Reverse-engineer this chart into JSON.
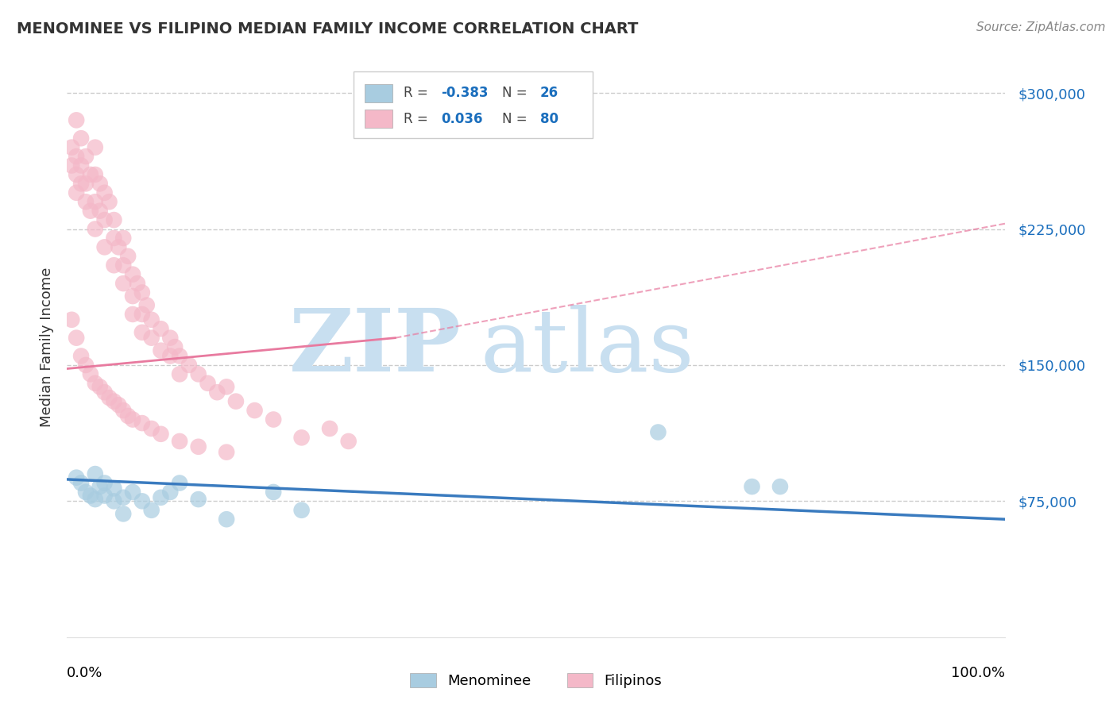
{
  "title": "MENOMINEE VS FILIPINO MEDIAN FAMILY INCOME CORRELATION CHART",
  "source": "Source: ZipAtlas.com",
  "ylabel": "Median Family Income",
  "legend_bottom": [
    "Menominee",
    "Filipinos"
  ],
  "menominee_R": -0.383,
  "menominee_N": 26,
  "filipinos_R": 0.036,
  "filipinos_N": 80,
  "y_ticks": [
    0,
    75000,
    150000,
    225000,
    300000
  ],
  "y_tick_labels": [
    "",
    "$75,000",
    "$150,000",
    "$225,000",
    "$300,000"
  ],
  "menominee_color": "#a8cce0",
  "filipinos_color": "#f4b8c8",
  "menominee_line_color": "#3a7bbf",
  "filipinos_line_color": "#e87a9f",
  "background_color": "#ffffff",
  "watermark_zip_color": "#c8dff0",
  "watermark_atlas_color": "#c8dff0",
  "menominee_x": [
    0.01,
    0.015,
    0.02,
    0.025,
    0.03,
    0.03,
    0.035,
    0.04,
    0.04,
    0.05,
    0.05,
    0.06,
    0.06,
    0.07,
    0.08,
    0.09,
    0.1,
    0.11,
    0.12,
    0.14,
    0.17,
    0.22,
    0.25,
    0.63,
    0.73,
    0.76
  ],
  "menominee_y": [
    88000,
    85000,
    80000,
    78000,
    76000,
    90000,
    83000,
    85000,
    78000,
    75000,
    82000,
    68000,
    77000,
    80000,
    75000,
    70000,
    77000,
    80000,
    85000,
    76000,
    65000,
    80000,
    70000,
    113000,
    83000,
    83000
  ],
  "filipinos_x": [
    0.005,
    0.005,
    0.01,
    0.01,
    0.01,
    0.01,
    0.015,
    0.015,
    0.015,
    0.02,
    0.02,
    0.02,
    0.025,
    0.025,
    0.03,
    0.03,
    0.03,
    0.03,
    0.035,
    0.035,
    0.04,
    0.04,
    0.04,
    0.045,
    0.05,
    0.05,
    0.05,
    0.055,
    0.06,
    0.06,
    0.06,
    0.065,
    0.07,
    0.07,
    0.07,
    0.075,
    0.08,
    0.08,
    0.08,
    0.085,
    0.09,
    0.09,
    0.1,
    0.1,
    0.11,
    0.11,
    0.115,
    0.12,
    0.12,
    0.13,
    0.14,
    0.15,
    0.16,
    0.17,
    0.18,
    0.2,
    0.22,
    0.25,
    0.28,
    0.3,
    0.005,
    0.01,
    0.015,
    0.02,
    0.025,
    0.03,
    0.035,
    0.04,
    0.045,
    0.05,
    0.055,
    0.06,
    0.065,
    0.07,
    0.08,
    0.09,
    0.1,
    0.12,
    0.14,
    0.17
  ],
  "filipinos_y": [
    270000,
    260000,
    285000,
    265000,
    255000,
    245000,
    275000,
    260000,
    250000,
    265000,
    250000,
    240000,
    255000,
    235000,
    270000,
    255000,
    240000,
    225000,
    250000,
    235000,
    245000,
    230000,
    215000,
    240000,
    230000,
    220000,
    205000,
    215000,
    220000,
    205000,
    195000,
    210000,
    200000,
    188000,
    178000,
    195000,
    190000,
    178000,
    168000,
    183000,
    175000,
    165000,
    170000,
    158000,
    165000,
    155000,
    160000,
    155000,
    145000,
    150000,
    145000,
    140000,
    135000,
    138000,
    130000,
    125000,
    120000,
    110000,
    115000,
    108000,
    175000,
    165000,
    155000,
    150000,
    145000,
    140000,
    138000,
    135000,
    132000,
    130000,
    128000,
    125000,
    122000,
    120000,
    118000,
    115000,
    112000,
    108000,
    105000,
    102000
  ],
  "figsize": [
    14.06,
    8.92
  ],
  "dpi": 100
}
